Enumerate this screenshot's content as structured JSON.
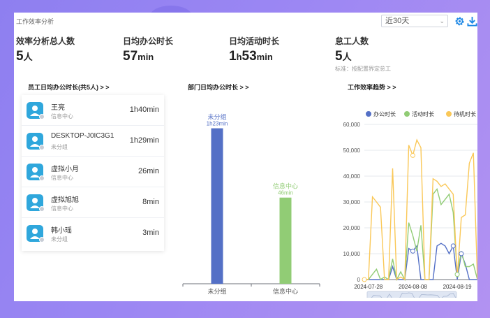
{
  "header": {
    "app_title": "工作效率分析",
    "period_select": {
      "value": "近30天"
    }
  },
  "stats": [
    {
      "label": "效率分析总人数",
      "value": "5",
      "unit": "人",
      "note": ""
    },
    {
      "label": "日均办公时长",
      "value": "57",
      "unit": "min",
      "note": ""
    },
    {
      "label": "日均活动时长",
      "value_parts": [
        "1",
        "h",
        "53",
        "min"
      ],
      "note": ""
    },
    {
      "label": "怠工人数",
      "value": "5",
      "unit": "人",
      "note": "标准：按配置界定怠工"
    }
  ],
  "employee_panel": {
    "title": "员工日均办公时长(共5人) > >",
    "rows": [
      {
        "name": "王亮",
        "dept": "信息中心",
        "duration": "1h40min"
      },
      {
        "name": "DESKTOP-J0IC3G1",
        "dept": "未分组",
        "duration": "1h29min"
      },
      {
        "name": "虚拟小月",
        "dept": "信息中心",
        "duration": "26min"
      },
      {
        "name": "虚拟旭旭",
        "dept": "信息中心",
        "duration": "8min"
      },
      {
        "name": "韩小瑶",
        "dept": "未分组",
        "duration": "3min"
      }
    ]
  },
  "dept_panel": {
    "title": "部门日均办公时长 > >"
  },
  "trend_panel": {
    "title": "工作效率趋势 > >"
  },
  "chart_data": [
    {
      "type": "bar",
      "title": "部门日均办公时长",
      "categories": [
        "未分组",
        "信息中心"
      ],
      "values": [
        83,
        46
      ],
      "data_labels": [
        [
          "未分组",
          "1h23min"
        ],
        [
          "信息中心",
          "46min"
        ]
      ],
      "colors": [
        "#5470c6",
        "#91cc75"
      ],
      "ylim": [
        0,
        100
      ],
      "unit": "min"
    },
    {
      "type": "line",
      "title": "工作效率趋势",
      "legend_position": "top",
      "ylim": [
        0,
        60000
      ],
      "yticks": [
        "0",
        "10,000",
        "20,000",
        "30,000",
        "40,000",
        "50,000",
        "60,000"
      ],
      "xtick_labels": [
        "2024-07-28",
        "2024-08-08",
        "2024-08-19"
      ],
      "x": [
        "07-27",
        "07-28",
        "07-29",
        "07-30",
        "07-31",
        "08-01",
        "08-02",
        "08-03",
        "08-04",
        "08-05",
        "08-06",
        "08-07",
        "08-08",
        "08-09",
        "08-10",
        "08-11",
        "08-12",
        "08-13",
        "08-14",
        "08-15",
        "08-16",
        "08-17",
        "08-18",
        "08-19",
        "08-20",
        "08-21",
        "08-22",
        "08-23",
        "08-24"
      ],
      "series": [
        {
          "name": "办公时长",
          "color": "#5470c6",
          "values": [
            0,
            0,
            0,
            0,
            0,
            0,
            0,
            5000,
            0,
            0,
            0,
            12000,
            11000,
            13000,
            0,
            0,
            0,
            0,
            13000,
            14000,
            13000,
            10000,
            13000,
            0,
            10000,
            6000,
            0,
            0,
            0
          ]
        },
        {
          "name": "活动时长",
          "color": "#91cc75",
          "values": [
            0,
            0,
            2000,
            4000,
            0,
            1000,
            0,
            8000,
            0,
            3000,
            0,
            22000,
            17000,
            11000,
            21000,
            0,
            0,
            33000,
            35000,
            29000,
            31000,
            33000,
            26000,
            2000,
            11000,
            5000,
            5000,
            6000,
            0
          ]
        },
        {
          "name": "待机时长",
          "color": "#fac858",
          "values": [
            0,
            0,
            32000,
            30000,
            28000,
            0,
            0,
            43000,
            0,
            1000,
            0,
            52000,
            48000,
            54000,
            51000,
            0,
            0,
            39000,
            38000,
            36000,
            37000,
            35000,
            33000,
            1000,
            24000,
            25000,
            45000,
            49000,
            0
          ]
        }
      ]
    }
  ]
}
